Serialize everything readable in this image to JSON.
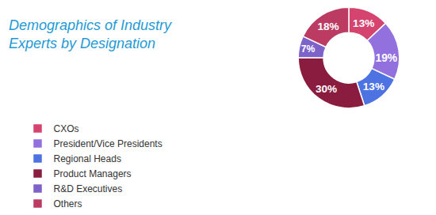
{
  "chart_data": {
    "type": "donut",
    "title": "Demographics of Industry Experts by Designation",
    "categories": [
      "CXOs",
      "President/Vice Presidents",
      "Regional Heads",
      "Product Managers",
      "R&D Executives",
      "Others"
    ],
    "values": [
      13,
      19,
      13,
      30,
      7,
      18
    ],
    "value_labels": [
      "13%",
      "19%",
      "13%",
      "30%",
      "7%",
      "18%"
    ],
    "colors": [
      "#d5436f",
      "#9270de",
      "#4d72e2",
      "#8a1c40",
      "#7d62c9",
      "#bb3b63"
    ],
    "data_labels": true,
    "legend": "bottom left"
  }
}
